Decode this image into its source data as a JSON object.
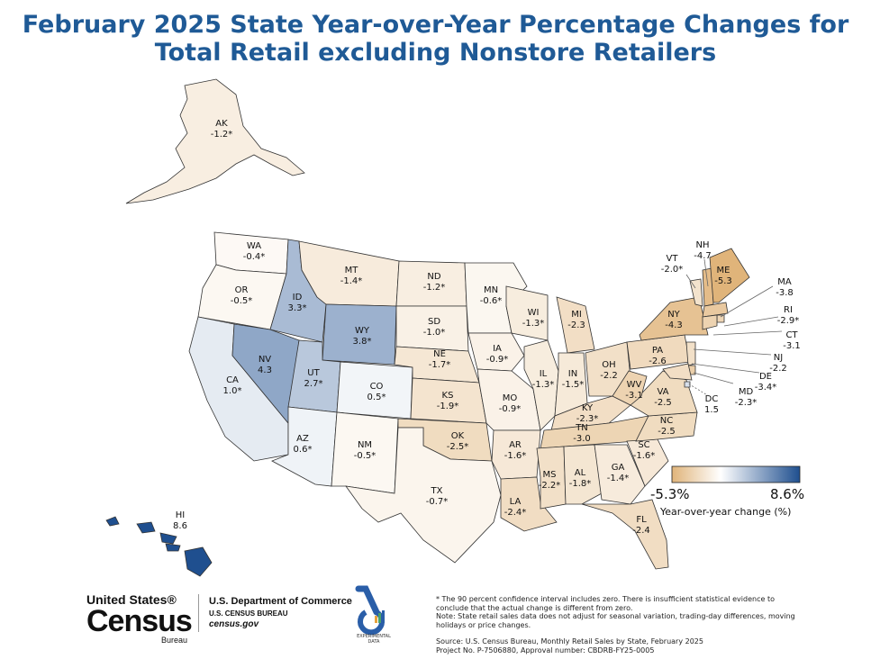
{
  "title_line1": "February 2025 State Year-over-Year Percentage Changes for",
  "title_line2": "Total Retail excluding Nonstore Retailers",
  "legend": {
    "min_label": "-5.3%",
    "max_label": "8.6%",
    "title": "Year-over-year change (%)",
    "color_low": "#e0b47a",
    "color_mid": "#ffffff",
    "color_high": "#1f4f8f"
  },
  "states": [
    {
      "abbr": "AK",
      "value": "-1.2*"
    },
    {
      "abbr": "WA",
      "value": "-0.4*"
    },
    {
      "abbr": "OR",
      "value": "-0.5*"
    },
    {
      "abbr": "CA",
      "value": "1.0*"
    },
    {
      "abbr": "NV",
      "value": "4.3"
    },
    {
      "abbr": "ID",
      "value": "3.3*"
    },
    {
      "abbr": "MT",
      "value": "-1.4*"
    },
    {
      "abbr": "WY",
      "value": "3.8*"
    },
    {
      "abbr": "UT",
      "value": "2.7*"
    },
    {
      "abbr": "CO",
      "value": "0.5*"
    },
    {
      "abbr": "AZ",
      "value": "0.6*"
    },
    {
      "abbr": "NM",
      "value": "-0.5*"
    },
    {
      "abbr": "ND",
      "value": "-1.2*"
    },
    {
      "abbr": "SD",
      "value": "-1.0*"
    },
    {
      "abbr": "NE",
      "value": "-1.7*"
    },
    {
      "abbr": "KS",
      "value": "-1.9*"
    },
    {
      "abbr": "OK",
      "value": "-2.5*"
    },
    {
      "abbr": "TX",
      "value": "-0.7*"
    },
    {
      "abbr": "MN",
      "value": "-0.6*"
    },
    {
      "abbr": "IA",
      "value": "-0.9*"
    },
    {
      "abbr": "MO",
      "value": "-0.9*"
    },
    {
      "abbr": "AR",
      "value": "-1.6*"
    },
    {
      "abbr": "LA",
      "value": "-2.4*"
    },
    {
      "abbr": "WI",
      "value": "-1.3*"
    },
    {
      "abbr": "IL",
      "value": "-1.3*"
    },
    {
      "abbr": "MI",
      "value": "-2.3"
    },
    {
      "abbr": "IN",
      "value": "-1.5*"
    },
    {
      "abbr": "OH",
      "value": "-2.2"
    },
    {
      "abbr": "KY",
      "value": "-2.3*"
    },
    {
      "abbr": "TN",
      "value": "-3.0"
    },
    {
      "abbr": "MS",
      "value": "-2.2*"
    },
    {
      "abbr": "AL",
      "value": "-1.8*"
    },
    {
      "abbr": "GA",
      "value": "-1.4*"
    },
    {
      "abbr": "FL",
      "value": "-2.4"
    },
    {
      "abbr": "SC",
      "value": "-1.6*"
    },
    {
      "abbr": "NC",
      "value": "-2.5"
    },
    {
      "abbr": "VA",
      "value": "-2.5"
    },
    {
      "abbr": "WV",
      "value": "-3.1"
    },
    {
      "abbr": "PA",
      "value": "-2.6"
    },
    {
      "abbr": "NY",
      "value": "-4.3"
    },
    {
      "abbr": "VT",
      "value": "-2.0*"
    },
    {
      "abbr": "NH",
      "value": "-4.7"
    },
    {
      "abbr": "ME",
      "value": "-5.3"
    },
    {
      "abbr": "MA",
      "value": "-3.8"
    },
    {
      "abbr": "RI",
      "value": "-2.9*"
    },
    {
      "abbr": "CT",
      "value": "-3.1"
    },
    {
      "abbr": "NJ",
      "value": "-2.2"
    },
    {
      "abbr": "DE",
      "value": "-3.4*"
    },
    {
      "abbr": "MD",
      "value": "-2.3*"
    },
    {
      "abbr": "DC",
      "value": "1.5"
    },
    {
      "abbr": "HI",
      "value": "8.6"
    }
  ],
  "footer": {
    "logo_line1": "United States®",
    "logo_line2": "Census",
    "logo_line3": "Bureau",
    "dept_line1": "U.S. Department of Commerce",
    "dept_line2": "U.S. CENSUS BUREAU",
    "dept_line3": "census.gov",
    "experimental_label": "EXPERIMENTAL DATA",
    "note1": "* The 90 percent confidence interval includes zero. There is insufficient statistical evidence to conclude that the actual change is different from zero.",
    "note2": "Note: State retail sales data does not adjust for seasonal variation, trading-day differences, moving holidays or price changes.",
    "source": "Source: U.S. Census Bureau, Monthly Retail Sales by State, February 2025",
    "project": "Project No. P-7506880, Approval number: CBDRB-FY25-0005"
  }
}
